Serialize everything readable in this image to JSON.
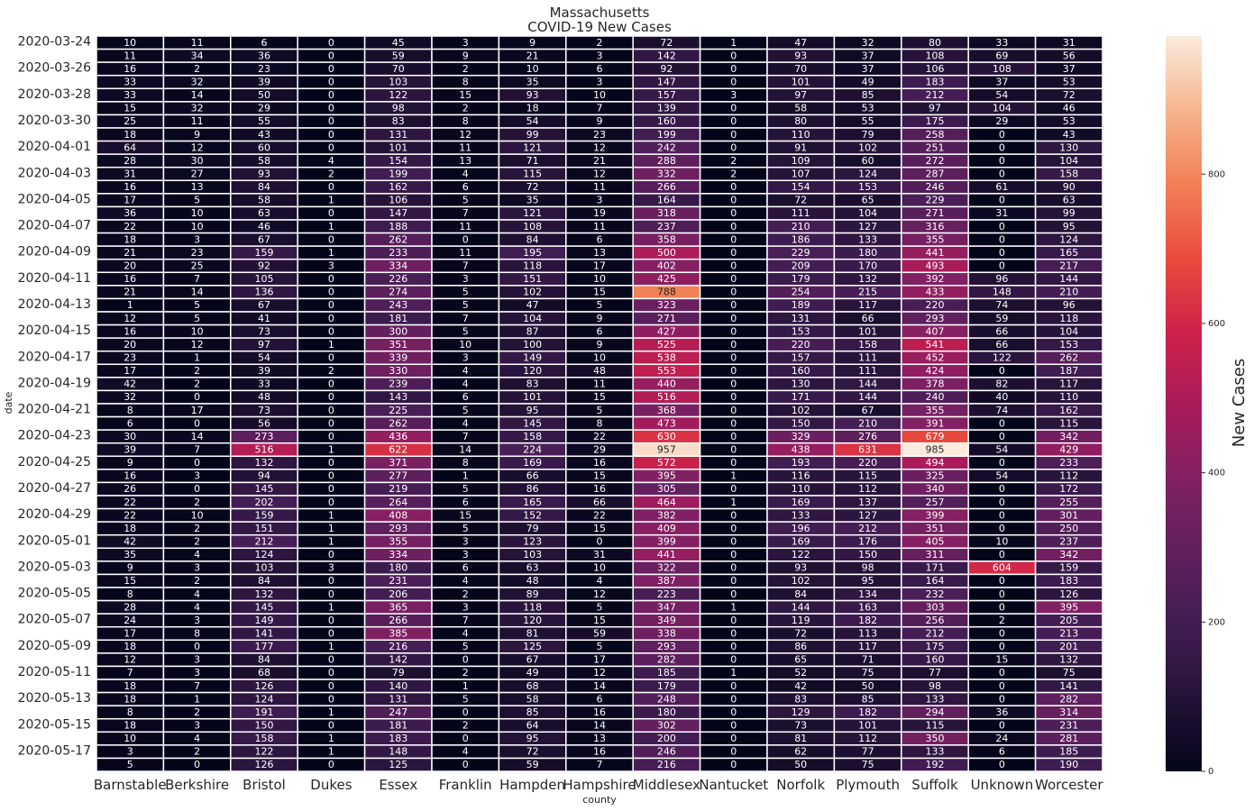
{
  "chart_data": {
    "type": "heatmap",
    "title": "Massachusetts",
    "subtitle": "COVID-19 New Cases",
    "xlabel": "county",
    "ylabel": "date",
    "colorbar_label": "New Cases",
    "colorbar_ticks": [
      0,
      200,
      400,
      600,
      800
    ],
    "vmin": 0,
    "vmax": 985,
    "colormap": "rocket",
    "columns": [
      "Barnstable",
      "Berkshire",
      "Bristol",
      "Dukes",
      "Essex",
      "Franklin",
      "Hampden",
      "Hampshire",
      "Middlesex",
      "Nantucket",
      "Norfolk",
      "Plymouth",
      "Suffolk",
      "Unknown",
      "Worcester"
    ],
    "row_labels": [
      "2020-03-24",
      "",
      "2020-03-26",
      "",
      "2020-03-28",
      "",
      "2020-03-30",
      "",
      "2020-04-01",
      "",
      "2020-04-03",
      "",
      "2020-04-05",
      "",
      "2020-04-07",
      "",
      "2020-04-09",
      "",
      "2020-04-11",
      "",
      "2020-04-13",
      "",
      "2020-04-15",
      "",
      "2020-04-17",
      "",
      "2020-04-19",
      "",
      "2020-04-21",
      "",
      "2020-04-23",
      "",
      "2020-04-25",
      "",
      "2020-04-27",
      "",
      "2020-04-29",
      "",
      "2020-05-01",
      "",
      "2020-05-03",
      "",
      "2020-05-05",
      "",
      "2020-05-07",
      "",
      "2020-05-09",
      "",
      "2020-05-11",
      "",
      "2020-05-13",
      "",
      "2020-05-15",
      "",
      "2020-05-17",
      ""
    ],
    "values": [
      [
        10,
        11,
        6,
        0,
        45,
        3,
        9,
        2,
        72,
        1,
        47,
        32,
        80,
        33,
        31
      ],
      [
        11,
        34,
        36,
        0,
        59,
        9,
        21,
        3,
        142,
        0,
        93,
        37,
        108,
        69,
        56
      ],
      [
        16,
        2,
        23,
        0,
        70,
        2,
        10,
        6,
        92,
        0,
        70,
        37,
        106,
        108,
        37
      ],
      [
        33,
        32,
        39,
        0,
        103,
        8,
        35,
        3,
        147,
        0,
        101,
        49,
        183,
        37,
        53
      ],
      [
        33,
        14,
        50,
        0,
        122,
        15,
        93,
        10,
        157,
        3,
        97,
        85,
        212,
        54,
        72
      ],
      [
        15,
        32,
        29,
        0,
        98,
        2,
        18,
        7,
        139,
        0,
        58,
        53,
        97,
        104,
        46
      ],
      [
        25,
        11,
        55,
        0,
        83,
        8,
        54,
        9,
        160,
        0,
        80,
        55,
        175,
        29,
        53
      ],
      [
        18,
        9,
        43,
        0,
        131,
        12,
        99,
        23,
        199,
        0,
        110,
        79,
        258,
        0,
        43
      ],
      [
        64,
        12,
        60,
        0,
        101,
        11,
        121,
        12,
        242,
        0,
        91,
        102,
        251,
        0,
        130
      ],
      [
        28,
        30,
        58,
        4,
        154,
        13,
        71,
        21,
        288,
        2,
        109,
        60,
        272,
        0,
        104
      ],
      [
        31,
        27,
        93,
        2,
        199,
        4,
        115,
        12,
        332,
        2,
        107,
        124,
        287,
        0,
        158
      ],
      [
        16,
        13,
        84,
        0,
        162,
        6,
        72,
        11,
        266,
        0,
        154,
        153,
        246,
        61,
        90
      ],
      [
        17,
        5,
        58,
        1,
        106,
        5,
        35,
        3,
        164,
        0,
        72,
        65,
        229,
        0,
        63
      ],
      [
        36,
        10,
        63,
        0,
        147,
        7,
        121,
        19,
        318,
        0,
        111,
        104,
        271,
        31,
        99
      ],
      [
        22,
        10,
        46,
        1,
        188,
        11,
        108,
        11,
        237,
        0,
        210,
        127,
        316,
        0,
        95
      ],
      [
        18,
        3,
        67,
        0,
        262,
        0,
        84,
        6,
        358,
        0,
        186,
        133,
        355,
        0,
        124
      ],
      [
        21,
        23,
        159,
        1,
        233,
        11,
        195,
        13,
        500,
        0,
        229,
        180,
        441,
        0,
        165
      ],
      [
        20,
        25,
        92,
        3,
        334,
        7,
        118,
        17,
        402,
        0,
        209,
        170,
        493,
        0,
        217
      ],
      [
        16,
        7,
        105,
        0,
        226,
        3,
        151,
        10,
        425,
        0,
        179,
        132,
        392,
        96,
        144
      ],
      [
        21,
        14,
        136,
        0,
        274,
        5,
        102,
        15,
        788,
        0,
        254,
        215,
        433,
        148,
        210
      ],
      [
        1,
        5,
        67,
        0,
        243,
        5,
        47,
        5,
        323,
        0,
        189,
        117,
        220,
        74,
        96
      ],
      [
        12,
        5,
        41,
        0,
        181,
        7,
        104,
        9,
        271,
        0,
        131,
        66,
        293,
        59,
        118
      ],
      [
        16,
        10,
        73,
        0,
        300,
        5,
        87,
        6,
        427,
        0,
        153,
        101,
        407,
        66,
        104
      ],
      [
        20,
        12,
        97,
        1,
        351,
        10,
        100,
        9,
        525,
        0,
        220,
        158,
        541,
        66,
        153
      ],
      [
        23,
        1,
        54,
        0,
        339,
        3,
        149,
        10,
        538,
        0,
        157,
        111,
        452,
        122,
        262
      ],
      [
        17,
        2,
        39,
        2,
        330,
        4,
        120,
        48,
        553,
        0,
        160,
        111,
        424,
        0,
        187
      ],
      [
        42,
        2,
        33,
        0,
        239,
        4,
        83,
        11,
        440,
        0,
        130,
        144,
        378,
        82,
        117
      ],
      [
        32,
        0,
        48,
        0,
        143,
        6,
        101,
        15,
        516,
        0,
        171,
        144,
        240,
        40,
        110
      ],
      [
        8,
        17,
        73,
        0,
        225,
        5,
        95,
        5,
        368,
        0,
        102,
        67,
        355,
        74,
        162
      ],
      [
        6,
        0,
        56,
        0,
        262,
        4,
        145,
        8,
        473,
        0,
        150,
        210,
        391,
        0,
        115
      ],
      [
        30,
        14,
        273,
        0,
        436,
        7,
        158,
        22,
        630,
        0,
        329,
        276,
        679,
        0,
        342
      ],
      [
        39,
        7,
        516,
        1,
        622,
        14,
        224,
        29,
        957,
        0,
        438,
        631,
        985,
        54,
        429
      ],
      [
        9,
        0,
        132,
        0,
        371,
        8,
        169,
        16,
        572,
        0,
        193,
        220,
        494,
        0,
        233
      ],
      [
        16,
        3,
        94,
        0,
        277,
        1,
        66,
        15,
        395,
        1,
        116,
        115,
        325,
        54,
        112
      ],
      [
        26,
        0,
        145,
        0,
        219,
        5,
        86,
        16,
        305,
        0,
        110,
        112,
        340,
        0,
        172
      ],
      [
        22,
        2,
        202,
        0,
        264,
        6,
        165,
        66,
        464,
        1,
        169,
        137,
        257,
        0,
        255
      ],
      [
        22,
        10,
        159,
        1,
        408,
        15,
        152,
        22,
        382,
        0,
        133,
        127,
        399,
        0,
        301
      ],
      [
        18,
        2,
        151,
        1,
        293,
        5,
        79,
        15,
        409,
        0,
        196,
        212,
        351,
        0,
        250
      ],
      [
        42,
        2,
        212,
        1,
        355,
        3,
        123,
        0,
        399,
        0,
        169,
        176,
        405,
        10,
        237
      ],
      [
        35,
        4,
        124,
        0,
        334,
        3,
        103,
        31,
        441,
        0,
        122,
        150,
        311,
        0,
        342
      ],
      [
        9,
        3,
        103,
        3,
        180,
        6,
        63,
        10,
        322,
        0,
        93,
        98,
        171,
        604,
        159
      ],
      [
        15,
        2,
        84,
        0,
        231,
        4,
        48,
        4,
        387,
        0,
        102,
        95,
        164,
        0,
        183
      ],
      [
        8,
        4,
        132,
        0,
        206,
        2,
        89,
        12,
        223,
        0,
        84,
        134,
        232,
        0,
        126
      ],
      [
        28,
        4,
        145,
        1,
        365,
        3,
        118,
        5,
        347,
        1,
        144,
        163,
        303,
        0,
        395
      ],
      [
        24,
        3,
        149,
        0,
        266,
        7,
        120,
        15,
        349,
        0,
        119,
        182,
        256,
        2,
        205
      ],
      [
        17,
        8,
        141,
        0,
        385,
        4,
        81,
        59,
        338,
        0,
        72,
        113,
        212,
        0,
        213
      ],
      [
        18,
        0,
        177,
        1,
        216,
        5,
        125,
        5,
        293,
        0,
        86,
        117,
        175,
        0,
        201
      ],
      [
        12,
        3,
        84,
        0,
        142,
        0,
        67,
        17,
        282,
        0,
        65,
        71,
        160,
        15,
        132
      ],
      [
        7,
        3,
        68,
        0,
        79,
        2,
        49,
        12,
        185,
        1,
        52,
        75,
        77,
        0,
        75
      ],
      [
        18,
        7,
        126,
        0,
        140,
        1,
        68,
        14,
        179,
        0,
        42,
        50,
        98,
        0,
        141
      ],
      [
        18,
        1,
        124,
        0,
        131,
        5,
        58,
        6,
        248,
        0,
        83,
        85,
        133,
        0,
        282
      ],
      [
        8,
        2,
        191,
        1,
        247,
        0,
        85,
        16,
        180,
        0,
        129,
        182,
        294,
        36,
        314
      ],
      [
        18,
        3,
        150,
        0,
        181,
        2,
        64,
        14,
        302,
        0,
        73,
        101,
        115,
        0,
        231
      ],
      [
        10,
        4,
        158,
        1,
        183,
        0,
        95,
        13,
        200,
        0,
        81,
        112,
        350,
        24,
        281
      ],
      [
        3,
        2,
        122,
        1,
        148,
        4,
        72,
        16,
        246,
        0,
        62,
        77,
        133,
        6,
        185
      ],
      [
        5,
        0,
        126,
        0,
        125,
        0,
        59,
        7,
        216,
        0,
        50,
        75,
        192,
        0,
        190
      ]
    ]
  }
}
